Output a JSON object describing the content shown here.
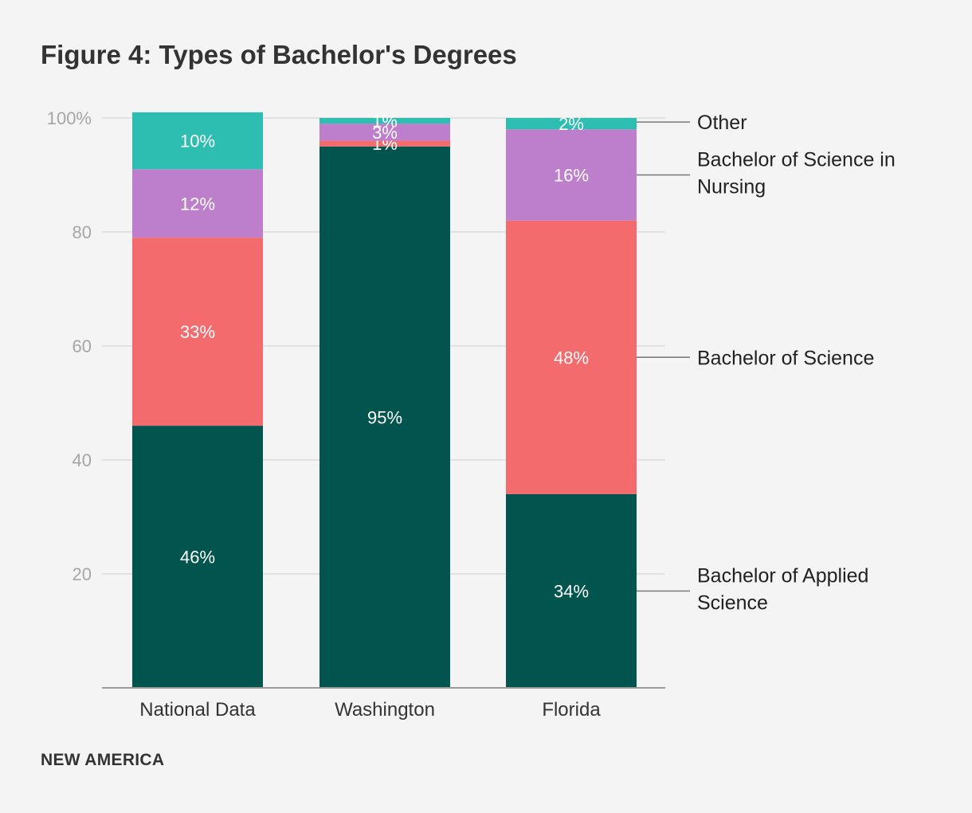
{
  "title": "Figure 4: Types of Bachelor's Degrees",
  "brand": "NEW AMERICA",
  "chart_data": {
    "type": "bar",
    "stacked": true,
    "title": "Figure 4: Types of Bachelor's Degrees",
    "xlabel": "",
    "ylabel": "",
    "ylim": [
      0,
      100
    ],
    "yticks": [
      "",
      "20",
      "40",
      "60",
      "80",
      "100%"
    ],
    "grid": true,
    "categories": [
      "National Data",
      "Washington",
      "Florida"
    ],
    "series": [
      {
        "name": "Bachelor of Applied Science",
        "legend": [
          "Bachelor of Applied",
          "Science"
        ],
        "color": "#02554f",
        "values": [
          46,
          95,
          34
        ],
        "labels": [
          "46%",
          "95%",
          "34%"
        ]
      },
      {
        "name": "Bachelor of Science",
        "legend": [
          "Bachelor of Science"
        ],
        "color": "#f46b6e",
        "values": [
          33,
          1,
          48
        ],
        "labels": [
          "33%",
          "1%",
          "48%"
        ]
      },
      {
        "name": "Bachelor of Science in Nursing",
        "legend": [
          "Bachelor of Science in",
          "Nursing"
        ],
        "color": "#bd7fcc",
        "values": [
          12,
          3,
          16
        ],
        "labels": [
          "12%",
          "3%",
          "16%"
        ]
      },
      {
        "name": "Other",
        "legend": [
          "Other"
        ],
        "color": "#2ebdb1",
        "values": [
          10,
          1,
          2
        ],
        "labels": [
          "10%",
          "1%",
          "2%"
        ]
      }
    ]
  }
}
